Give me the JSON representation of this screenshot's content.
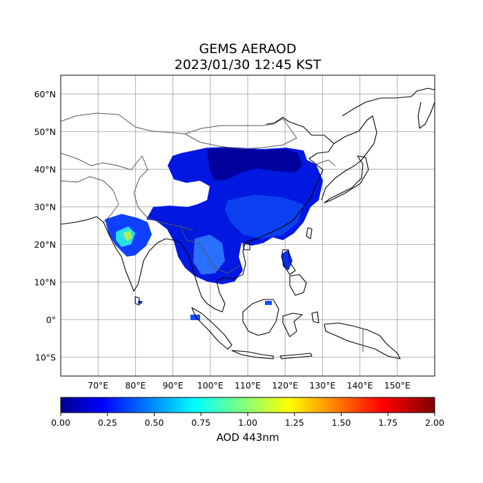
{
  "title": {
    "line1": "GEMS AERAOD",
    "line2": "2023/01/30 12:45 KST"
  },
  "map": {
    "lon_range": [
      60,
      160
    ],
    "lat_range": [
      -15,
      65
    ],
    "lon_ticks": [
      "70°E",
      "80°E",
      "90°E",
      "100°E",
      "110°E",
      "120°E",
      "130°E",
      "140°E",
      "150°E"
    ],
    "lon_tick_values": [
      70,
      80,
      90,
      100,
      110,
      120,
      130,
      140,
      150
    ],
    "lat_ticks": [
      "60°N",
      "50°N",
      "40°N",
      "30°N",
      "20°N",
      "10°N",
      "0°",
      "10°S"
    ],
    "lat_tick_values": [
      60,
      50,
      40,
      30,
      20,
      10,
      0,
      -10
    ],
    "grid": true
  },
  "colorbar": {
    "label": "AOD 443nm",
    "ticks": [
      "0.00",
      "0.25",
      "0.50",
      "0.75",
      "1.00",
      "1.25",
      "1.50",
      "1.75",
      "2.00"
    ],
    "tick_values": [
      0,
      0.25,
      0.5,
      0.75,
      1.0,
      1.25,
      1.5,
      1.75,
      2.0
    ],
    "vmin": 0,
    "vmax": 2,
    "colormap": "jet"
  },
  "colors": {
    "coastline": "#000000",
    "border": "#555555",
    "grid": "#b0b0b0",
    "aod_low": "#00008f",
    "aod_mid": "#0020ff",
    "aod_high": "#00ffff"
  }
}
